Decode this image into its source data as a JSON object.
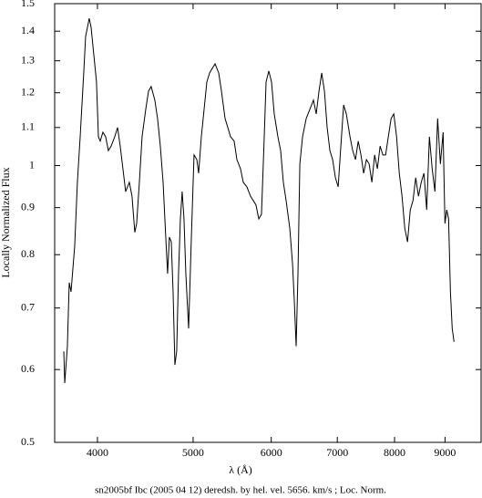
{
  "chart_data": {
    "type": "line",
    "x_label": "λ (Å)",
    "y_label": "Locally Normalized Flux",
    "caption": "sn2005bf Ibc (2005 04 12) deredsh. by hel. vel.  5656. km/s ;  Loc. Norm.",
    "xscale": "log",
    "yscale": "log",
    "color": "#000000",
    "xlim": [
      3620,
      9790
    ],
    "ylim": [
      0.5,
      1.5
    ],
    "xticks": [
      4000,
      5000,
      6000,
      7000,
      8000,
      9000
    ],
    "yticks": [
      0.5,
      0.6,
      0.7,
      0.8,
      0.9,
      1,
      1.1,
      1.2,
      1.3,
      1.4,
      1.5
    ],
    "x": [
      3698,
      3706,
      3729,
      3745,
      3761,
      3793,
      3817,
      3842,
      3874,
      3891,
      3908,
      3924,
      3941,
      3966,
      3991,
      4009,
      4026,
      4051,
      4077,
      4103,
      4130,
      4165,
      4192,
      4218,
      4245,
      4272,
      4309,
      4336,
      4364,
      4383,
      4411,
      4439,
      4477,
      4506,
      4534,
      4573,
      4602,
      4632,
      4662,
      4691,
      4711,
      4731,
      4752,
      4772,
      4792,
      4812,
      4833,
      4854,
      4874,
      4895,
      4916,
      4948,
      4980,
      5011,
      5044,
      5065,
      5097,
      5130,
      5163,
      5196,
      5230,
      5263,
      5308,
      5342,
      5387,
      5422,
      5456,
      5503,
      5538,
      5585,
      5621,
      5669,
      5717,
      5754,
      5790,
      5828,
      5865,
      5903,
      5928,
      5966,
      6004,
      6042,
      6094,
      6133,
      6172,
      6212,
      6265,
      6306,
      6332,
      6359,
      6386,
      6414,
      6455,
      6510,
      6565,
      6621,
      6664,
      6707,
      6750,
      6793,
      6836,
      6880,
      6924,
      6969,
      7014,
      7058,
      7104,
      7149,
      7210,
      7256,
      7303,
      7350,
      7397,
      7444,
      7492,
      7540,
      7588,
      7637,
      7686,
      7735,
      7785,
      7835,
      7885,
      7936,
      7986,
      8038,
      8089,
      8141,
      8193,
      8246,
      8299,
      8352,
      8405,
      8459,
      8514,
      8568,
      8623,
      8678,
      8734,
      8790,
      8846,
      8903,
      8960,
      8998,
      9036,
      9075,
      9114,
      9152,
      9191
    ],
    "values": [
      0.628,
      0.58,
      0.636,
      0.746,
      0.729,
      0.817,
      0.959,
      1.075,
      1.261,
      1.382,
      1.414,
      1.446,
      1.414,
      1.32,
      1.233,
      1.075,
      1.063,
      1.087,
      1.075,
      1.038,
      1.05,
      1.075,
      1.1,
      1.05,
      0.992,
      0.937,
      0.959,
      0.926,
      0.846,
      0.865,
      0.959,
      1.075,
      1.151,
      1.205,
      1.219,
      1.178,
      1.125,
      1.05,
      0.959,
      0.836,
      0.763,
      0.836,
      0.826,
      0.729,
      0.607,
      0.628,
      0.763,
      0.875,
      0.937,
      0.875,
      0.763,
      0.665,
      0.836,
      1.027,
      1.015,
      0.981,
      1.075,
      1.151,
      1.233,
      1.261,
      1.276,
      1.29,
      1.261,
      1.205,
      1.125,
      1.1,
      1.075,
      1.063,
      1.015,
      0.992,
      0.959,
      0.948,
      0.926,
      0.916,
      0.906,
      0.875,
      0.885,
      1.075,
      1.233,
      1.267,
      1.233,
      1.138,
      1.075,
      1.038,
      0.959,
      0.916,
      0.855,
      0.781,
      0.712,
      0.636,
      0.763,
      1.004,
      1.075,
      1.125,
      1.151,
      1.178,
      1.138,
      1.205,
      1.261,
      1.205,
      1.1,
      1.038,
      1.015,
      0.97,
      0.948,
      1.05,
      1.164,
      1.138,
      1.075,
      1.038,
      1.015,
      1.063,
      1.027,
      0.981,
      1.015,
      1.004,
      0.959,
      1.027,
      0.992,
      1.05,
      1.027,
      1.027,
      1.075,
      1.125,
      1.138,
      1.075,
      0.981,
      0.926,
      0.855,
      0.826,
      0.895,
      0.916,
      0.97,
      0.926,
      0.959,
      0.981,
      0.895,
      1.075,
      0.992,
      0.937,
      1.125,
      1.004,
      1.087,
      0.865,
      0.895,
      0.875,
      0.729,
      0.665,
      0.643
    ]
  }
}
